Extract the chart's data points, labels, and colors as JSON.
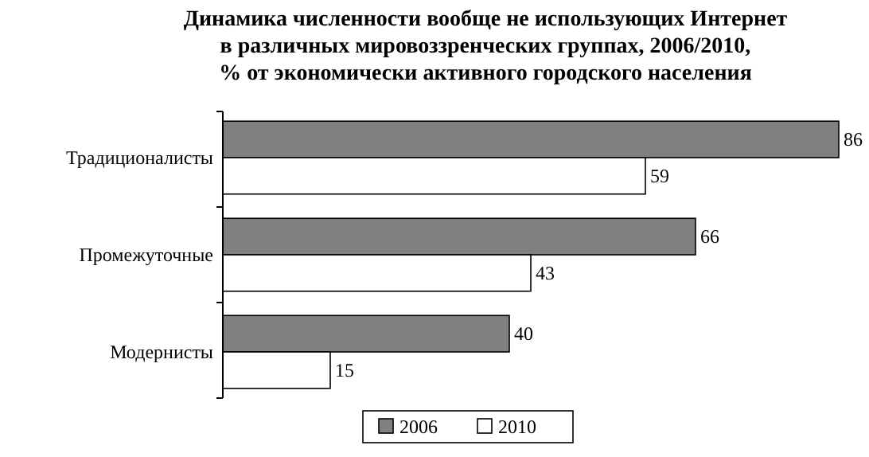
{
  "chart_data": {
    "type": "bar",
    "orientation": "horizontal",
    "title": "Динамика численности вообще не использующих Интернет\nв различных мировоззренческих группах, 2006/2010,\n% от экономически активного городского населения",
    "categories": [
      "Традиционалисты",
      "Промежуточные",
      "Модернисты"
    ],
    "series": [
      {
        "name": "2006",
        "color": "#808080",
        "values": [
          86,
          66,
          40
        ]
      },
      {
        "name": "2010",
        "color": "#ffffff",
        "values": [
          59,
          43,
          15
        ]
      }
    ],
    "data_labels": true,
    "legend": "bottom"
  }
}
